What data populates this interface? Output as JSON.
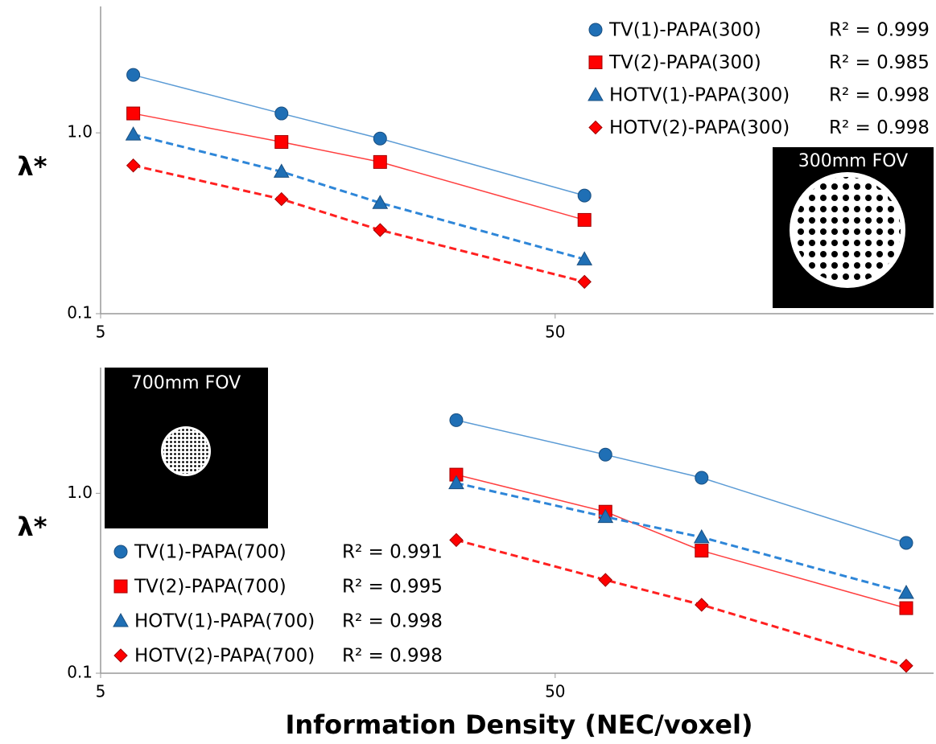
{
  "chart_data": [
    {
      "type": "line",
      "ylabel": "λ*",
      "inset_label": "300mm FOV",
      "xscale": "log",
      "yscale": "log",
      "x": [
        5.9,
        12.5,
        20.6,
        58
      ],
      "xlim": [
        5,
        340
      ],
      "ylim": [
        0.1,
        5
      ],
      "xticks": [
        5,
        50
      ],
      "yticks": [
        0.1,
        {
          "value": 1,
          "label": "1.0"
        }
      ],
      "legend": "upper right",
      "series": [
        {
          "name": "TV(1)-PAPA(300)",
          "r2": "R² = 0.999",
          "color": "#1f6fb5",
          "line_color": "#5b9bd5",
          "marker": "circle",
          "linestyle": "solid",
          "values": [
            2.09,
            1.28,
            0.93,
            0.45
          ]
        },
        {
          "name": "TV(2)-PAPA(300)",
          "r2": "R² = 0.985",
          "color": "#ff0000",
          "line_color": "#ff4040",
          "marker": "square",
          "linestyle": "solid",
          "values": [
            1.28,
            0.89,
            0.69,
            0.33
          ]
        },
        {
          "name": "HOTV(1)-PAPA(300)",
          "r2": "R² = 0.998",
          "color": "#1f6fb5",
          "line_color": "#2e86d8",
          "marker": "triangle",
          "linestyle": "dashed",
          "values": [
            0.98,
            0.61,
            0.41,
            0.2
          ]
        },
        {
          "name": "HOTV(2)-PAPA(300)",
          "r2": "R² = 0.998",
          "color": "#ff0000",
          "line_color": "#ff2020",
          "marker": "diamond",
          "linestyle": "dashed",
          "values": [
            0.66,
            0.43,
            0.29,
            0.15
          ]
        }
      ]
    },
    {
      "type": "line",
      "ylabel": "λ*",
      "xlabel": "Information Density (NEC/voxel)",
      "inset_label": "700mm FOV",
      "xscale": "log",
      "yscale": "log",
      "x": [
        30.3,
        64.5,
        105,
        296
      ],
      "xlim": [
        5,
        340
      ],
      "ylim": [
        0.1,
        5
      ],
      "xticks": [
        5,
        50
      ],
      "yticks": [
        0.1,
        {
          "value": 1,
          "label": "1.0"
        }
      ],
      "legend": "lower left",
      "series": [
        {
          "name": "TV(1)-PAPA(700)",
          "r2": "R² = 0.991",
          "color": "#1f6fb5",
          "line_color": "#5b9bd5",
          "marker": "circle",
          "linestyle": "solid",
          "values": [
            2.55,
            1.64,
            1.22,
            0.53
          ]
        },
        {
          "name": "TV(2)-PAPA(700)",
          "r2": "R² = 0.995",
          "color": "#ff0000",
          "line_color": "#ff4040",
          "marker": "square",
          "linestyle": "solid",
          "values": [
            1.27,
            0.79,
            0.48,
            0.23
          ]
        },
        {
          "name": "HOTV(1)-PAPA(700)",
          "r2": "R² = 0.998",
          "color": "#1f6fb5",
          "line_color": "#2e86d8",
          "marker": "triangle",
          "linestyle": "dashed",
          "values": [
            1.14,
            0.74,
            0.57,
            0.28
          ]
        },
        {
          "name": "HOTV(2)-PAPA(700)",
          "r2": "R² = 0.998",
          "color": "#ff0000",
          "line_color": "#ff2020",
          "marker": "diamond",
          "linestyle": "dashed",
          "values": [
            0.55,
            0.33,
            0.24,
            0.11
          ]
        }
      ]
    }
  ]
}
